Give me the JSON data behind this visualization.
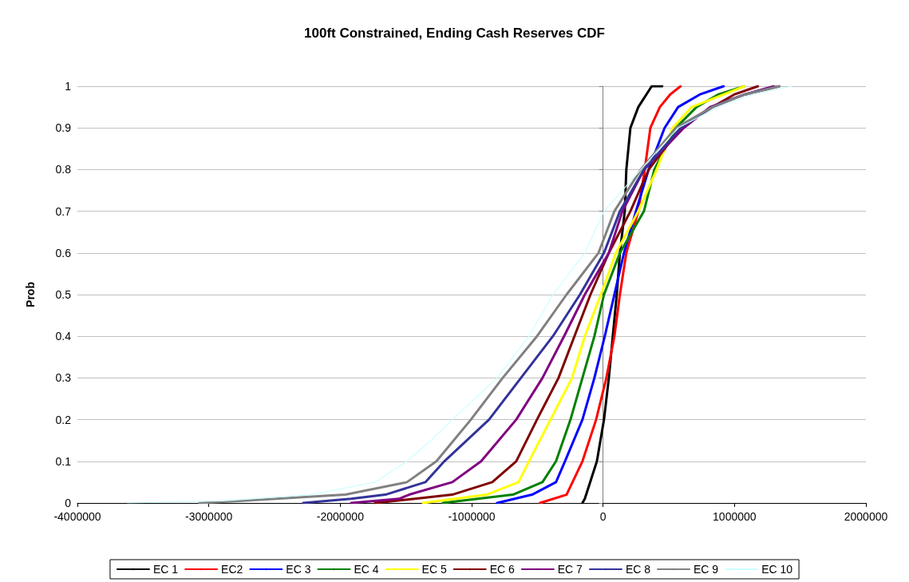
{
  "chart_data": {
    "type": "line",
    "title": "100ft Constrained, Ending Cash Reserves CDF",
    "ylabel": "Prob",
    "xlim": [
      -4000000,
      2000000
    ],
    "xticks": [
      -4000000,
      -3000000,
      -2000000,
      -1000000,
      0,
      1000000,
      2000000
    ],
    "ylim": [
      0,
      1
    ],
    "yticks": [
      0,
      0.1,
      0.2,
      0.3,
      0.4,
      0.5,
      0.6,
      0.7,
      0.8,
      0.9,
      1
    ],
    "grid": "y",
    "legend": "bottom",
    "marker": "none",
    "line_style": "solid",
    "series": [
      {
        "name": "EC 1",
        "color": "#000000",
        "x": [
          -157000,
          -139000,
          -47000,
          7000,
          44000,
          74000,
          104000,
          128000,
          165000,
          177000,
          208000,
          268000,
          370000,
          450000
        ],
        "values": [
          0,
          0.01,
          0.1,
          0.2,
          0.3,
          0.4,
          0.5,
          0.6,
          0.7,
          0.8,
          0.9,
          0.95,
          1,
          1
        ]
      },
      {
        "name": "EC2",
        "color": "#ff0000",
        "x": [
          -480000,
          -278000,
          -157000,
          -53000,
          25000,
          86000,
          128000,
          177000,
          268000,
          317000,
          360000,
          432000,
          510000,
          590000
        ],
        "values": [
          0,
          0.02,
          0.1,
          0.2,
          0.3,
          0.4,
          0.5,
          0.6,
          0.7,
          0.8,
          0.9,
          0.95,
          0.98,
          1
        ]
      },
      {
        "name": "EC 3",
        "color": "#0000ff",
        "x": [
          -806000,
          -540000,
          -358000,
          -290000,
          -157000,
          -66000,
          13000,
          86000,
          159000,
          250000,
          347000,
          468000,
          571000,
          735000,
          917000
        ],
        "values": [
          0,
          0.02,
          0.05,
          0.1,
          0.2,
          0.3,
          0.4,
          0.5,
          0.6,
          0.7,
          0.8,
          0.9,
          0.95,
          0.98,
          1
        ]
      },
      {
        "name": "EC 4",
        "color": "#008000",
        "x": [
          -1220000,
          -686000,
          -461000,
          -358000,
          -248000,
          -157000,
          -66000,
          7000,
          128000,
          311000,
          390000,
          553000,
          711000,
          875000,
          1075000
        ],
        "values": [
          0,
          0.02,
          0.05,
          0.1,
          0.2,
          0.3,
          0.4,
          0.5,
          0.6,
          0.7,
          0.8,
          0.9,
          0.95,
          0.98,
          1
        ]
      },
      {
        "name": "EC 5",
        "color": "#ffff00",
        "x": [
          -1370000,
          -885000,
          -643000,
          -564000,
          -400000,
          -236000,
          -139000,
          -17000,
          98000,
          268000,
          408000,
          529000,
          674000,
          917000,
          1075000
        ],
        "values": [
          0,
          0.02,
          0.05,
          0.1,
          0.2,
          0.3,
          0.4,
          0.5,
          0.6,
          0.7,
          0.8,
          0.9,
          0.95,
          0.98,
          1
        ]
      },
      {
        "name": "EC 6",
        "color": "#800000",
        "x": [
          -1735000,
          -1432000,
          -1147000,
          -843000,
          -661000,
          -503000,
          -339000,
          -218000,
          -96000,
          44000,
          208000,
          347000,
          590000,
          832000,
          997000,
          1178000
        ],
        "values": [
          0,
          0.01,
          0.02,
          0.05,
          0.1,
          0.2,
          0.3,
          0.4,
          0.5,
          0.6,
          0.7,
          0.8,
          0.9,
          0.95,
          0.98,
          1
        ]
      },
      {
        "name": "EC 7",
        "color": "#800080",
        "x": [
          -1917000,
          -1553000,
          -1475000,
          -1147000,
          -928000,
          -661000,
          -461000,
          -297000,
          -139000,
          44000,
          147000,
          311000,
          614000,
          814000,
          1075000,
          1300000
        ],
        "values": [
          0,
          0.01,
          0.02,
          0.05,
          0.1,
          0.2,
          0.3,
          0.4,
          0.5,
          0.6,
          0.7,
          0.8,
          0.9,
          0.95,
          0.98,
          1
        ]
      },
      {
        "name": "EC 8",
        "color": "#333399",
        "x": [
          -2282000,
          -1917000,
          -1656000,
          -1352000,
          -1208000,
          -868000,
          -625000,
          -382000,
          -176000,
          7000,
          128000,
          311000,
          590000,
          832000,
          1075000,
          1342000
        ],
        "values": [
          0,
          0.01,
          0.02,
          0.05,
          0.1,
          0.2,
          0.3,
          0.4,
          0.5,
          0.6,
          0.7,
          0.8,
          0.9,
          0.95,
          0.98,
          1
        ]
      },
      {
        "name": "EC 9",
        "color": "#808080",
        "x": [
          -3072000,
          -2768000,
          -1960000,
          -1492000,
          -1268000,
          -1006000,
          -764000,
          -503000,
          -278000,
          -35000,
          86000,
          287000,
          553000,
          832000,
          1075000,
          1342000
        ],
        "values": [
          0,
          0.005,
          0.02,
          0.05,
          0.1,
          0.2,
          0.3,
          0.4,
          0.5,
          0.6,
          0.7,
          0.8,
          0.9,
          0.95,
          0.98,
          1
        ]
      },
      {
        "name": "EC 10",
        "color": "#ccffff",
        "x": [
          -3618000,
          -2889000,
          -2221000,
          -1735000,
          -1492000,
          -1311000,
          -1147000,
          -806000,
          -564000,
          -382000,
          -139000,
          7000,
          287000,
          571000,
          875000,
          1136000,
          1439000
        ],
        "values": [
          0,
          0.005,
          0.02,
          0.05,
          0.1,
          0.15,
          0.2,
          0.3,
          0.4,
          0.5,
          0.6,
          0.7,
          0.8,
          0.9,
          0.95,
          0.98,
          1
        ]
      }
    ]
  }
}
